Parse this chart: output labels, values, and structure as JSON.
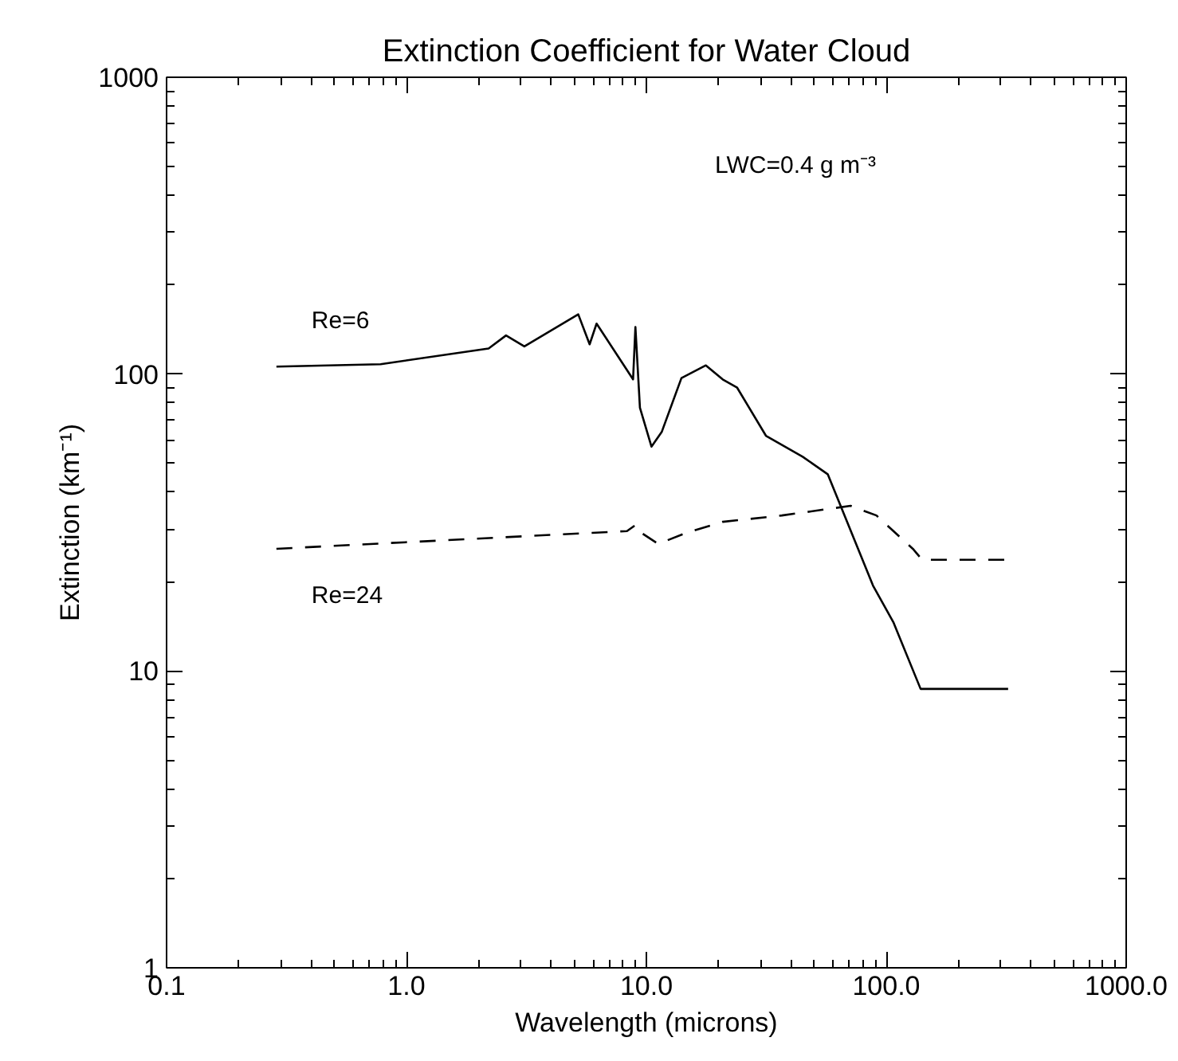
{
  "chart_data": {
    "type": "line",
    "title": "Extinction Coefficient for Water Cloud",
    "xlabel": "Wavelength (microns)",
    "ylabel": "Extinction (km⁻¹)",
    "log": "xy",
    "grid": false,
    "xlim": [
      0.1,
      1000
    ],
    "ylim": [
      1,
      1000
    ],
    "xticks": [
      0.1,
      {
        "value": 1,
        "label": "1.0"
      },
      {
        "value": 10,
        "label": "10.0"
      },
      {
        "value": 100,
        "label": "100.0"
      },
      {
        "value": 1000,
        "label": "1000.0"
      }
    ],
    "yticks": [
      1,
      10,
      100,
      1000
    ],
    "annotations": [
      "LWC=0.4 g m⁻³"
    ],
    "series": [
      {
        "name": "Re=6",
        "color": "#000000",
        "line_style": "solid",
        "x": [
          0.287,
          0.78,
          2.2,
          2.6,
          3.1,
          5.2,
          5.8,
          6.2,
          8.8,
          9.0,
          9.4,
          10.5,
          11.6,
          14,
          17.7,
          20.8,
          23.9,
          31.5,
          44.8,
          57,
          88,
          107,
          139,
          322
        ],
        "values": [
          106,
          108,
          122,
          135,
          124,
          159,
          126,
          148,
          96,
          144,
          77,
          57,
          64,
          97,
          107,
          96,
          90,
          62,
          52.7,
          46,
          19.4,
          14.6,
          8.7,
          8.7
        ]
      },
      {
        "name": "Re=24",
        "color": "#000000",
        "line_style": "dashed",
        "x": [
          0.287,
          8.3,
          9.0,
          9.3,
          10.3,
          11.2,
          14.7,
          20.8,
          36.7,
          71,
          91,
          129,
          141,
          322
        ],
        "values": [
          25.8,
          29.6,
          31,
          29.6,
          28,
          26.8,
          29.2,
          31.8,
          33.4,
          36,
          33.4,
          25.8,
          23.7,
          23.7
        ]
      }
    ]
  }
}
